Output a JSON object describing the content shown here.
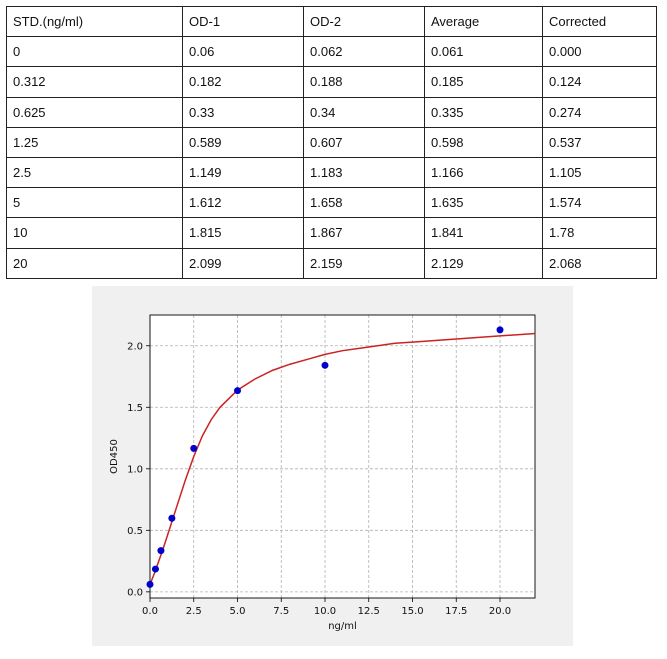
{
  "table": {
    "headers": [
      "STD.(ng/ml)",
      "OD-1",
      "OD-2",
      "Average",
      "Corrected"
    ],
    "rows": [
      [
        "0",
        "0.06",
        "0.062",
        "0.061",
        "0.000"
      ],
      [
        "0.312",
        "0.182",
        "0.188",
        "0.185",
        "0.124"
      ],
      [
        "0.625",
        "0.33",
        "0.34",
        "0.335",
        "0.274"
      ],
      [
        "1.25",
        "0.589",
        "0.607",
        "0.598",
        "0.537"
      ],
      [
        "2.5",
        "1.149",
        "1.183",
        "1.166",
        "1.105"
      ],
      [
        "5",
        "1.612",
        "1.658",
        "1.635",
        "1.574"
      ],
      [
        "10",
        "1.815",
        "1.867",
        "1.841",
        "1.78"
      ],
      [
        "20",
        "2.099",
        "2.159",
        "2.129",
        "2.068"
      ]
    ]
  },
  "chart_data": {
    "type": "scatter",
    "title": "",
    "xlabel": "ng/ml",
    "ylabel": "OD450",
    "xlim": [
      0,
      22
    ],
    "ylim": [
      -0.05,
      2.25
    ],
    "x_ticks": [
      0.0,
      2.5,
      5.0,
      7.5,
      10.0,
      12.5,
      15.0,
      17.5,
      20.0
    ],
    "x_tick_labels": [
      "0.0",
      "2.5",
      "5.0",
      "7.5",
      "10.0",
      "12.5",
      "15.0",
      "17.5",
      "20.0"
    ],
    "y_ticks": [
      0.0,
      0.5,
      1.0,
      1.5,
      2.0
    ],
    "y_tick_labels": [
      "0.0",
      "0.5",
      "1.0",
      "1.5",
      "2.0"
    ],
    "grid": true,
    "series": [
      {
        "type": "scatter",
        "color": "#0000cc",
        "x": [
          0,
          0.312,
          0.625,
          1.25,
          2.5,
          5,
          10,
          20
        ],
        "y": [
          0.061,
          0.185,
          0.335,
          0.598,
          1.166,
          1.635,
          1.841,
          2.129
        ]
      },
      {
        "type": "line",
        "color": "#cc2222",
        "x": [
          0,
          0.25,
          0.5,
          0.75,
          1,
          1.25,
          1.5,
          2,
          2.5,
          3,
          3.5,
          4,
          5,
          6,
          7,
          8,
          9,
          10,
          11,
          12,
          13,
          14,
          15,
          16,
          17,
          18,
          19,
          20,
          21,
          22
        ],
        "y": [
          0.06,
          0.15,
          0.25,
          0.35,
          0.46,
          0.57,
          0.68,
          0.9,
          1.1,
          1.27,
          1.4,
          1.5,
          1.64,
          1.73,
          1.8,
          1.85,
          1.89,
          1.93,
          1.96,
          1.98,
          2.0,
          2.02,
          2.03,
          2.04,
          2.05,
          2.06,
          2.07,
          2.08,
          2.09,
          2.1
        ]
      }
    ]
  }
}
